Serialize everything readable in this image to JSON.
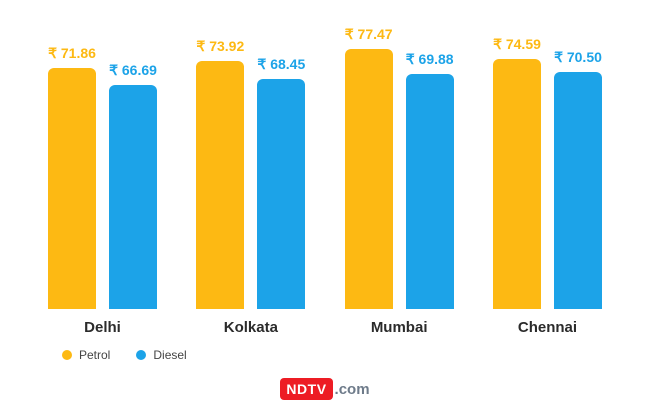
{
  "chart_data": {
    "type": "bar",
    "title": "",
    "categories": [
      "Delhi",
      "Kolkata",
      "Mumbai",
      "Chennai"
    ],
    "series": [
      {
        "name": "Petrol",
        "color": "#FDB913",
        "values": [
          71.86,
          73.92,
          77.47,
          74.59
        ]
      },
      {
        "name": "Diesel",
        "color": "#1CA3E8",
        "values": [
          66.69,
          68.45,
          69.88,
          70.5
        ]
      }
    ],
    "value_prefix": "₹ ",
    "value_decimals": 2,
    "xlabel": "",
    "ylabel": "",
    "ylim": [
      0,
      80
    ],
    "grid": false,
    "legend_position": "bottom-left"
  },
  "legend": {
    "items": [
      {
        "label": "Petrol",
        "color": "#FDB913"
      },
      {
        "label": "Diesel",
        "color": "#1CA3E8"
      }
    ]
  },
  "footer": {
    "logo_text": "NDTV",
    "logo_suffix": ".com",
    "logo_bg_color": "#ED1C24",
    "logo_suffix_color": "#6E7B8A"
  }
}
